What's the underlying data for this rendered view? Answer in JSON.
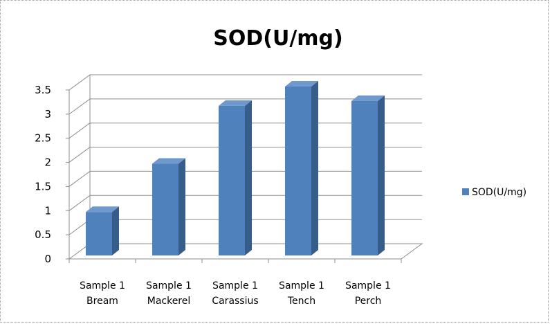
{
  "chart_data": {
    "type": "bar",
    "title": "SOD(U/mg)",
    "categories": [
      [
        "Sample 1",
        "Bream"
      ],
      [
        "Sample 1",
        "Mackerel"
      ],
      [
        "Sample 1",
        "Carassius"
      ],
      [
        "Sample 1",
        "Tench"
      ],
      [
        "Sample 1",
        "Perch"
      ]
    ],
    "series": [
      {
        "name": "SOD(U/mg)",
        "values": [
          0.9,
          1.9,
          3.1,
          3.5,
          3.2
        ]
      }
    ],
    "yticks": [
      "0",
      "0.5",
      "1",
      "1.5",
      "2",
      "2.5",
      "3",
      "3.5"
    ],
    "ylim": [
      0,
      3.5
    ],
    "grid": true,
    "legend": "right",
    "style": "3d-column",
    "colors": {
      "front": "#4f81bd",
      "side": "#385d8a",
      "top": "#6f98cc"
    }
  }
}
